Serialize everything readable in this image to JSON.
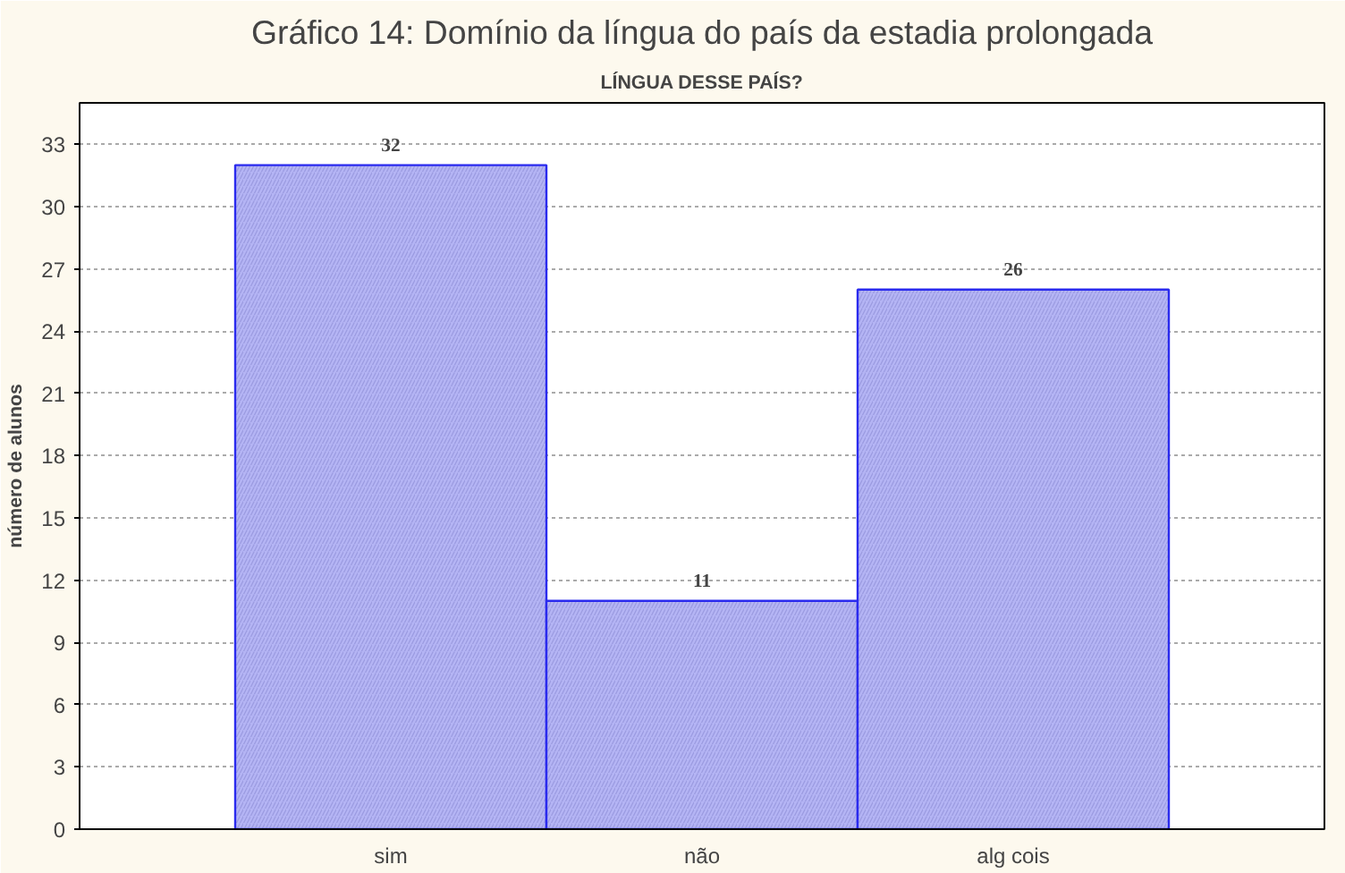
{
  "chart_data": {
    "type": "bar",
    "title": "Gráfico 14: Domínio da língua do país da estadia prolongada",
    "subtitle": "LÍNGUA DESSE PAÍS?",
    "ylabel": "número de alunos",
    "categories": [
      "sim",
      "não",
      "alg cois"
    ],
    "values": [
      32,
      11,
      26
    ],
    "color": "#b4b4f4",
    "ylim": [
      0,
      35
    ],
    "yticks": [
      0,
      3,
      6,
      9,
      12,
      15,
      18,
      21,
      24,
      27,
      30,
      33
    ],
    "grid": "y",
    "data_labels": true
  }
}
